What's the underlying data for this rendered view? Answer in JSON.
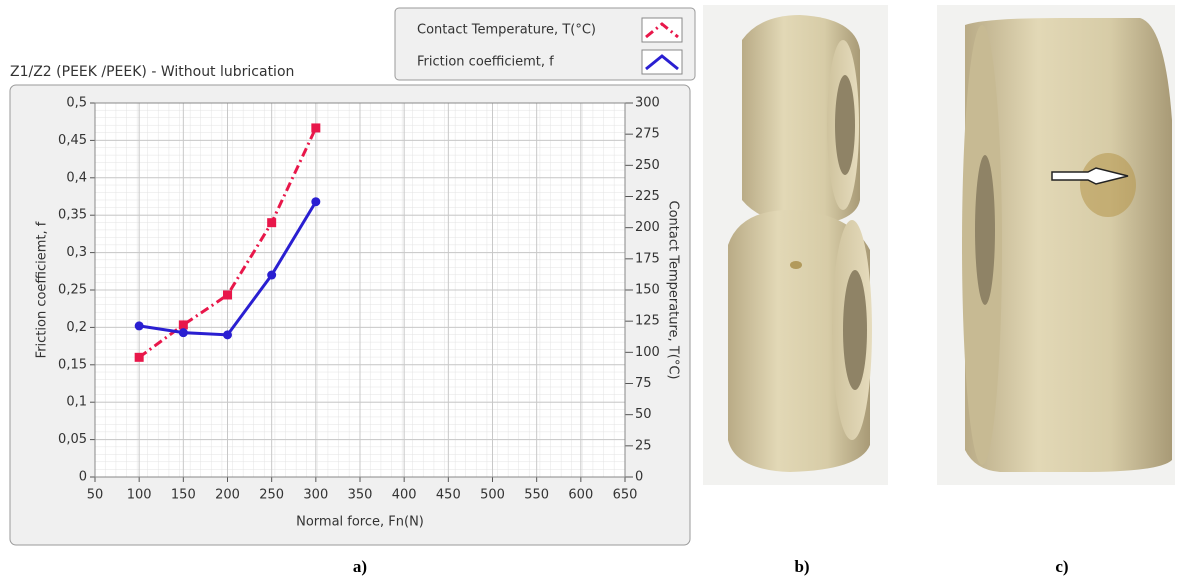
{
  "chart_data": {
    "type": "line",
    "title": "Z1/Z2  (PEEK /PEEK) - Without lubrication",
    "xlabel": "Normal force, Fn(N)",
    "ylabel": "Friction coefficiemt, f",
    "y2label": "Contact Temperature, T(°C)",
    "x": [
      100,
      150,
      200,
      250,
      300
    ],
    "series": [
      {
        "name": "Contact Temperature, T(°C)",
        "color": "#e8174a",
        "line_style": "dash-dot",
        "marker": "square",
        "axis": "y2",
        "values": [
          96,
          122,
          146,
          204,
          280
        ]
      },
      {
        "name": "Friction coefficiemt, f",
        "color": "#2a1fd1",
        "line_style": "solid",
        "marker": "circle",
        "values": [
          0.202,
          0.193,
          0.19,
          0.27,
          0.368
        ]
      }
    ],
    "xlim": [
      50,
      650
    ],
    "xticks": [
      50,
      100,
      150,
      200,
      250,
      300,
      350,
      400,
      450,
      500,
      550,
      600,
      650
    ],
    "ylim": [
      0,
      0.5
    ],
    "yticks": [
      0,
      {
        "value": 0.05,
        "label": "0,05"
      },
      {
        "value": 0.1,
        "label": "0,1"
      },
      {
        "value": 0.15,
        "label": "0,15"
      },
      {
        "value": 0.2,
        "label": "0,2"
      },
      {
        "value": 0.25,
        "label": "0,25"
      },
      {
        "value": 0.3,
        "label": "0,3"
      },
      {
        "value": 0.35,
        "label": "0,35"
      },
      {
        "value": 0.4,
        "label": "0,4"
      },
      {
        "value": 0.45,
        "label": "0,45"
      },
      {
        "value": 0.5,
        "label": "0,5"
      }
    ],
    "y2lim": [
      0,
      300
    ],
    "y2ticks": [
      0,
      25,
      50,
      75,
      100,
      125,
      150,
      175,
      200,
      225,
      250,
      275,
      300
    ],
    "grid": true,
    "legend": "top-right"
  },
  "panel_labels": [
    "a)",
    "b)",
    "c)"
  ]
}
